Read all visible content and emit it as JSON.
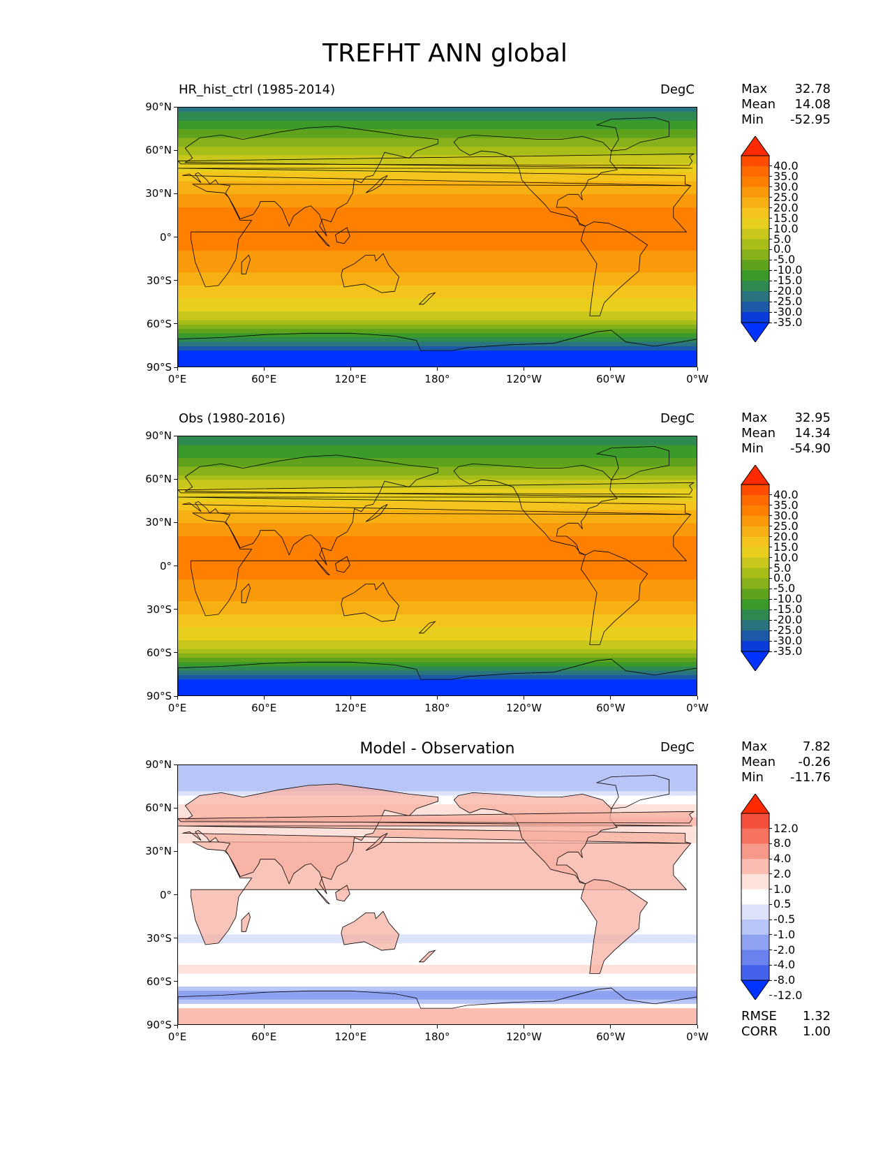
{
  "title": "TREFHT ANN global",
  "panels": [
    {
      "title": "HR_hist_ctrl (1985-2014)",
      "units": "DegC",
      "stats": {
        "max_label": "Max",
        "max": "32.78",
        "mean_label": "Mean",
        "mean": "14.08",
        "min_label": "Min",
        "min": "-52.95"
      }
    },
    {
      "title": "Obs (1980-2016)",
      "units": "DegC",
      "stats": {
        "max_label": "Max",
        "max": "32.95",
        "mean_label": "Mean",
        "mean": "14.34",
        "min_label": "Min",
        "min": "-54.90"
      }
    },
    {
      "title": "Model - Observation",
      "units": "DegC",
      "stats": {
        "max_label": "Max",
        "max": "7.82",
        "mean_label": "Mean",
        "mean": "-0.26",
        "min_label": "Min",
        "min": "-11.76"
      },
      "metrics": {
        "rmse_label": "RMSE",
        "rmse": "1.32",
        "corr_label": "CORR",
        "corr": "1.00"
      }
    }
  ],
  "chart_data": [
    {
      "type": "heatmap",
      "title": "HR_hist_ctrl (1985-2014)",
      "units": "DegC",
      "xticks": [
        "0°E",
        "60°E",
        "120°E",
        "180°",
        "120°W",
        "60°W",
        "0°W"
      ],
      "yticks": [
        "90°N",
        "60°N",
        "30°N",
        "0°",
        "30°S",
        "60°S",
        "90°S"
      ],
      "xlim": [
        0,
        360
      ],
      "ylim": [
        -90,
        90
      ],
      "colorbar_levels": [
        "40.0",
        "35.0",
        "30.0",
        "25.0",
        "20.0",
        "15.0",
        "10.0",
        "5.0",
        "0.0",
        "-5.0",
        "-10.0",
        "-15.0",
        "-20.0",
        "-25.0",
        "-30.0",
        "-35.0"
      ],
      "colors": [
        "#ff2a00",
        "#ff4d00",
        "#ff6a00",
        "#ff8000",
        "#fa9a0a",
        "#f7b014",
        "#f4c41c",
        "#e8cf1e",
        "#c9c71c",
        "#a8bd18",
        "#86b11a",
        "#5fa31c",
        "#3a9a2a",
        "#2f8a52",
        "#2a7480",
        "#1c5aa8",
        "#0a3cdc",
        "#0033ff"
      ],
      "zonal_mean": [
        [
          90,
          -28
        ],
        [
          80,
          -20
        ],
        [
          70,
          -12
        ],
        [
          60,
          -2
        ],
        [
          50,
          6
        ],
        [
          40,
          14
        ],
        [
          30,
          20
        ],
        [
          20,
          25
        ],
        [
          10,
          27
        ],
        [
          0,
          27
        ],
        [
          -10,
          25
        ],
        [
          -20,
          22
        ],
        [
          -30,
          17
        ],
        [
          -40,
          12
        ],
        [
          -50,
          5
        ],
        [
          -60,
          -3
        ],
        [
          -70,
          -20
        ],
        [
          -80,
          -40
        ],
        [
          -90,
          -48
        ]
      ]
    },
    {
      "type": "heatmap",
      "title": "Obs (1980-2016)",
      "units": "DegC",
      "xticks": [
        "0°E",
        "60°E",
        "120°E",
        "180°",
        "120°W",
        "60°W",
        "0°W"
      ],
      "yticks": [
        "90°N",
        "60°N",
        "30°N",
        "0°",
        "30°S",
        "60°S",
        "90°S"
      ],
      "xlim": [
        0,
        360
      ],
      "ylim": [
        -90,
        90
      ],
      "colorbar_levels": [
        "40.0",
        "35.0",
        "30.0",
        "25.0",
        "20.0",
        "15.0",
        "10.0",
        "5.0",
        "0.0",
        "-5.0",
        "-10.0",
        "-15.0",
        "-20.0",
        "-25.0",
        "-30.0",
        "-35.0"
      ],
      "colors": [
        "#ff2a00",
        "#ff4d00",
        "#ff6a00",
        "#ff8000",
        "#fa9a0a",
        "#f7b014",
        "#f4c41c",
        "#e8cf1e",
        "#c9c71c",
        "#a8bd18",
        "#86b11a",
        "#5fa31c",
        "#3a9a2a",
        "#2f8a52",
        "#2a7480",
        "#1c5aa8",
        "#0a3cdc",
        "#0033ff"
      ],
      "zonal_mean": [
        [
          90,
          -25
        ],
        [
          80,
          -18
        ],
        [
          70,
          -10
        ],
        [
          60,
          -1
        ],
        [
          50,
          7
        ],
        [
          40,
          14
        ],
        [
          30,
          20
        ],
        [
          20,
          25
        ],
        [
          10,
          27
        ],
        [
          0,
          27
        ],
        [
          -10,
          25
        ],
        [
          -20,
          22
        ],
        [
          -30,
          17
        ],
        [
          -40,
          12
        ],
        [
          -50,
          5
        ],
        [
          -60,
          -3
        ],
        [
          -70,
          -20
        ],
        [
          -80,
          -42
        ],
        [
          -90,
          -50
        ]
      ]
    },
    {
      "type": "heatmap",
      "title": "Model - Observation",
      "units": "DegC",
      "xticks": [
        "0°E",
        "60°E",
        "120°E",
        "180°",
        "120°W",
        "60°W",
        "0°W"
      ],
      "yticks": [
        "90°N",
        "60°N",
        "30°N",
        "0°",
        "30°S",
        "60°S",
        "90°S"
      ],
      "xlim": [
        0,
        360
      ],
      "ylim": [
        -90,
        90
      ],
      "colorbar_levels": [
        "12.0",
        "8.0",
        "4.0",
        "2.0",
        "1.0",
        "0.5",
        "-0.5",
        "-1.0",
        "-2.0",
        "-4.0",
        "-8.0",
        "-12.0"
      ],
      "colors": [
        "#ff2a00",
        "#f4503c",
        "#f5735f",
        "#f7998a",
        "#fabdb2",
        "#fde2dc",
        "#ffffff",
        "#dde3fb",
        "#b9c4f7",
        "#8fa1f1",
        "#6a82ee",
        "#4562ed",
        "#0033ff"
      ],
      "zonal_mean": [
        [
          90,
          -1.5
        ],
        [
          80,
          -2
        ],
        [
          70,
          -0.5
        ],
        [
          60,
          0.8
        ],
        [
          50,
          1.2
        ],
        [
          40,
          0.6
        ],
        [
          30,
          0.2
        ],
        [
          20,
          0
        ],
        [
          10,
          0
        ],
        [
          0,
          0
        ],
        [
          -10,
          0
        ],
        [
          -20,
          -0.3
        ],
        [
          -30,
          -0.6
        ],
        [
          -40,
          0
        ],
        [
          -50,
          0.6
        ],
        [
          -60,
          0.2
        ],
        [
          -70,
          -3
        ],
        [
          -80,
          1.5
        ],
        [
          -90,
          2
        ]
      ]
    }
  ]
}
